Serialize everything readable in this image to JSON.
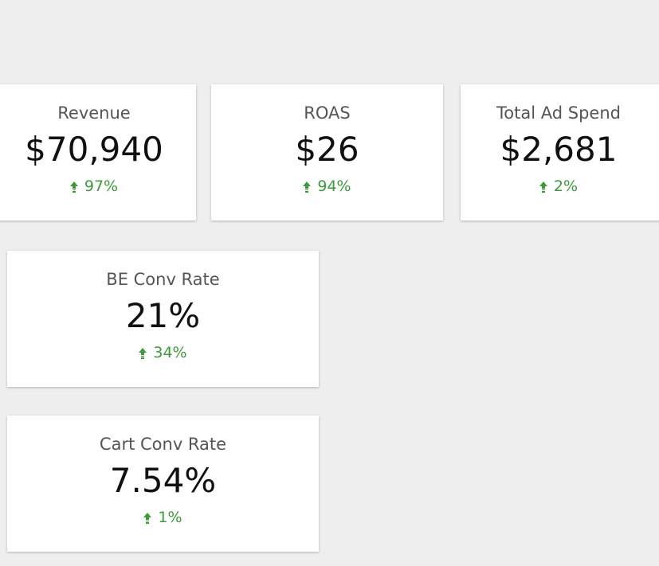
{
  "kpis": {
    "revenue": {
      "title": "Revenue",
      "value": "$70,940",
      "change": "97%",
      "trend": "up"
    },
    "roas": {
      "title": "ROAS",
      "value": "$26",
      "change": "94%",
      "trend": "up"
    },
    "total_ad_spend": {
      "title": "Total Ad Spend",
      "value": "$2,681",
      "change": "2%",
      "trend": "up"
    },
    "be_conv_rate": {
      "title": "BE Conv Rate",
      "value": "21%",
      "change": "34%",
      "trend": "up"
    },
    "cart_conv_rate": {
      "title": "Cart Conv Rate",
      "value": "7.54%",
      "change": "1%",
      "trend": "up"
    }
  },
  "colors": {
    "background": "#eeeeee",
    "card": "#ffffff",
    "title": "#555555",
    "value": "#111111",
    "positive": "#3c9a3c"
  },
  "icons": {
    "trend_up": "arrow-up-icon"
  }
}
